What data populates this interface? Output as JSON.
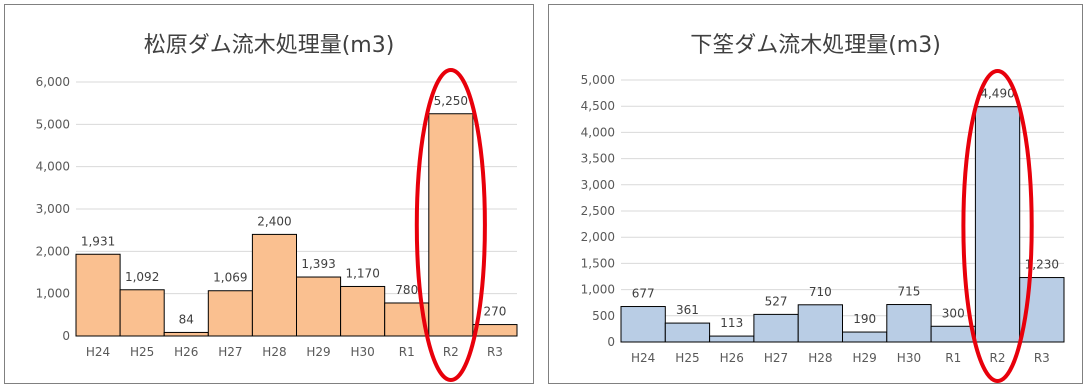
{
  "chart_data": [
    {
      "type": "bar",
      "title": "松原ダム流木処理量(m3)",
      "xlabel": "",
      "ylabel": "",
      "categories": [
        "H24",
        "H25",
        "H26",
        "H27",
        "H28",
        "H29",
        "H30",
        "R1",
        "R2",
        "R3"
      ],
      "values": [
        1931,
        1092,
        84,
        1069,
        2400,
        1393,
        1170,
        780,
        5250,
        270
      ],
      "data_labels": [
        "1,931",
        "1,092",
        "84",
        "1,069",
        "2,400",
        "1,393",
        "1,170",
        "780",
        "5,250",
        "270"
      ],
      "ylim": [
        0,
        6000
      ],
      "yticks": [
        0,
        1000,
        2000,
        3000,
        4000,
        5000,
        6000
      ],
      "ytick_labels": [
        "0",
        "1,000",
        "2,000",
        "3,000",
        "4,000",
        "5,000",
        "6,000"
      ],
      "grid": true,
      "legend": "none",
      "bar_color": "#FAC090",
      "highlight": {
        "category": "R2",
        "shape": "ellipse",
        "color": "#E8000B"
      }
    },
    {
      "type": "bar",
      "title": "下筌ダム流木処理量(m3)",
      "xlabel": "",
      "ylabel": "",
      "categories": [
        "H24",
        "H25",
        "H26",
        "H27",
        "H28",
        "H29",
        "H30",
        "R1",
        "R2",
        "R3"
      ],
      "values": [
        677,
        361,
        113,
        527,
        710,
        190,
        715,
        300,
        4490,
        1230
      ],
      "data_labels": [
        "677",
        "361",
        "113",
        "527",
        "710",
        "190",
        "715",
        "300",
        "4,490",
        "1,230"
      ],
      "ylim": [
        0,
        5000
      ],
      "yticks": [
        0,
        500,
        1000,
        1500,
        2000,
        2500,
        3000,
        3500,
        4000,
        4500,
        5000
      ],
      "ytick_labels": [
        "0",
        "500",
        "1,000",
        "1,500",
        "2,000",
        "2,500",
        "3,000",
        "3,500",
        "4,000",
        "4,500",
        "5,000"
      ],
      "grid": true,
      "legend": "none",
      "bar_color": "#B9CDE5",
      "highlight": {
        "category": "R2",
        "shape": "ellipse",
        "color": "#E8000B"
      }
    }
  ]
}
